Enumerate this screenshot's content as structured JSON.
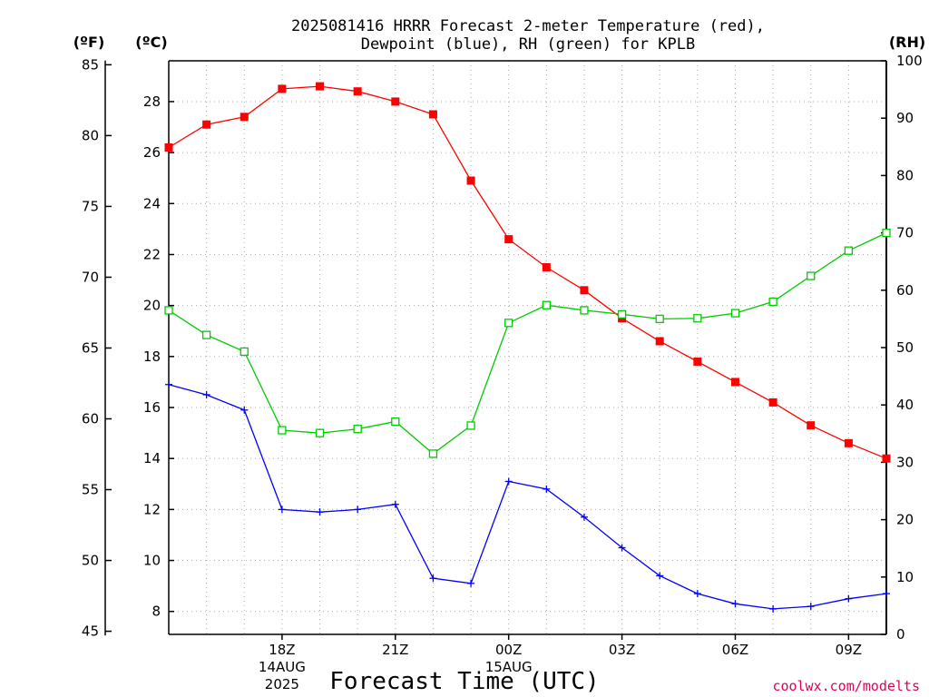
{
  "chart_data": {
    "type": "line",
    "title_line1": "2025081416 HRRR Forecast 2-meter Temperature (red),",
    "title_line2": "Dewpoint (blue), RH (green) for KPLB",
    "xlabel": "Forecast Time (UTC)",
    "credit": "coolwx.com/modelts",
    "units": {
      "fahrenheit": "(ºF)",
      "celsius": "(ºC)",
      "rh": "(RH)"
    },
    "x": [
      "15Z",
      "16Z",
      "17Z",
      "18Z",
      "19Z",
      "20Z",
      "21Z",
      "22Z",
      "23Z",
      "00Z",
      "01Z",
      "02Z",
      "03Z",
      "04Z",
      "05Z",
      "06Z",
      "07Z",
      "08Z",
      "09Z",
      "10Z"
    ],
    "x_tick_labels": [
      {
        "x": "18Z",
        "lines": [
          "18Z",
          "14AUG",
          "2025"
        ]
      },
      {
        "x": "21Z",
        "lines": [
          "21Z"
        ]
      },
      {
        "x": "00Z",
        "lines": [
          "00Z",
          "15AUG"
        ]
      },
      {
        "x": "03Z",
        "lines": [
          "03Z"
        ]
      },
      {
        "x": "06Z",
        "lines": [
          "06Z"
        ]
      },
      {
        "x": "09Z",
        "lines": [
          "09Z"
        ]
      }
    ],
    "y_celsius_range": [
      7.1,
      29.6
    ],
    "y_celsius_ticks": [
      "8",
      "10",
      "12",
      "14",
      "16",
      "18",
      "20",
      "22",
      "24",
      "26",
      "28"
    ],
    "y_fahrenheit_ticks": [
      "45",
      "50",
      "55",
      "60",
      "65",
      "70",
      "75",
      "80",
      "85"
    ],
    "y_rh_range": [
      0,
      100
    ],
    "y_rh_ticks": [
      "0",
      "10",
      "20",
      "30",
      "40",
      "50",
      "60",
      "70",
      "80",
      "90",
      "100"
    ],
    "grid": true,
    "series": [
      {
        "axis": "celsius",
        "color": "#ff0000",
        "marker": "filled-square",
        "values": [
          26.2,
          27.1,
          27.4,
          28.5,
          28.6,
          28.4,
          28.0,
          27.5,
          24.9,
          22.6,
          21.5,
          20.6,
          19.5,
          18.6,
          17.8,
          17.0,
          16.2,
          15.3,
          14.6,
          14.0
        ]
      },
      {
        "axis": "celsius",
        "color": "#0000ff",
        "marker": "plus",
        "values": [
          16.9,
          16.5,
          15.9,
          12.0,
          11.9,
          12.0,
          12.2,
          9.3,
          9.1,
          13.1,
          12.8,
          11.7,
          10.5,
          9.4,
          8.7,
          8.3,
          8.1,
          8.2,
          8.5,
          8.7
        ]
      },
      {
        "axis": "rh",
        "color": "#00cc00",
        "marker": "open-square",
        "values": [
          56.5,
          52.2,
          49.3,
          35.6,
          35.1,
          35.8,
          37.1,
          31.5,
          36.4,
          54.3,
          57.4,
          56.5,
          55.8,
          55.0,
          55.1,
          56.0,
          58.0,
          62.5,
          66.9,
          70.0
        ]
      }
    ]
  }
}
